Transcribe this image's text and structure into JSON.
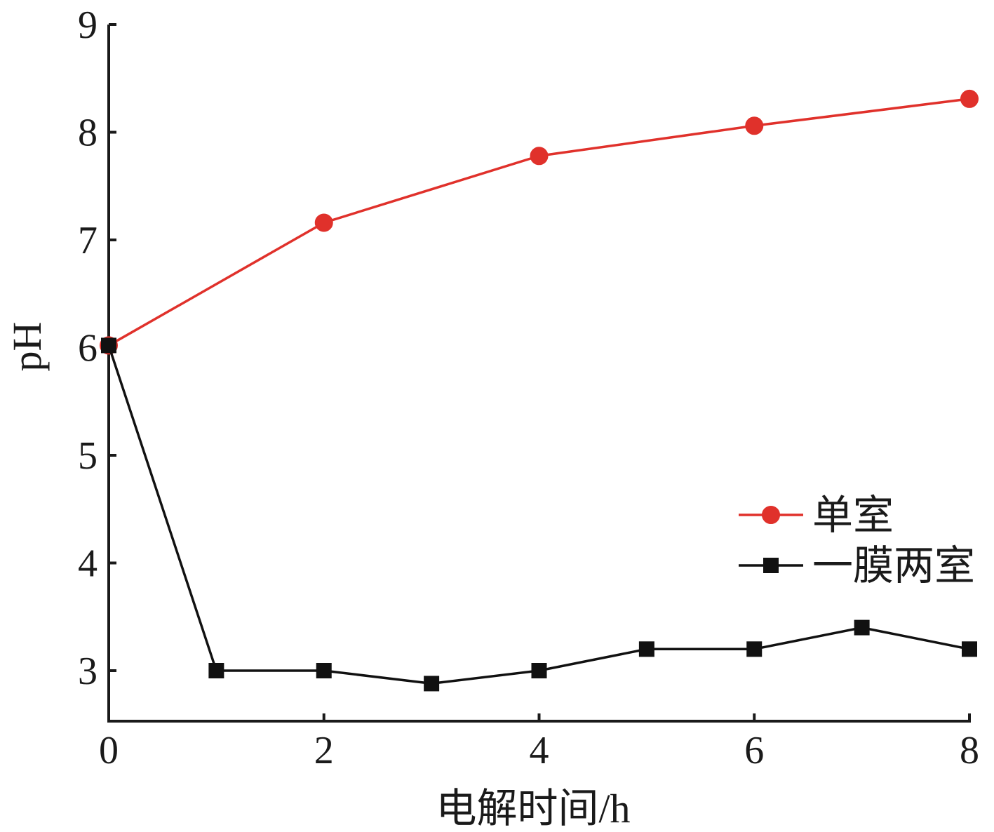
{
  "chart_data": {
    "type": "line",
    "xlabel": "电解时间/h",
    "ylabel": "pH",
    "xlim": [
      0,
      8
    ],
    "ylim": [
      2.5,
      9
    ],
    "xticks": [
      "0",
      "2",
      "4",
      "6",
      "8"
    ],
    "yticks": [
      "3",
      "4",
      "5",
      "6",
      "7",
      "8",
      "9"
    ],
    "grid": false,
    "legend_position": "center-right",
    "series": [
      {
        "name": "单室",
        "color": "#e0312b",
        "marker": "circle",
        "x": [
          0,
          2,
          4,
          6,
          8
        ],
        "y": [
          6.02,
          7.16,
          7.78,
          8.06,
          8.31
        ]
      },
      {
        "name": "一膜两室",
        "color": "#111111",
        "marker": "square",
        "x": [
          0,
          1,
          2,
          3,
          4,
          5,
          6,
          7,
          8
        ],
        "y": [
          6.02,
          3.0,
          3.0,
          2.88,
          3.0,
          3.2,
          3.2,
          3.4,
          3.2
        ]
      }
    ]
  }
}
